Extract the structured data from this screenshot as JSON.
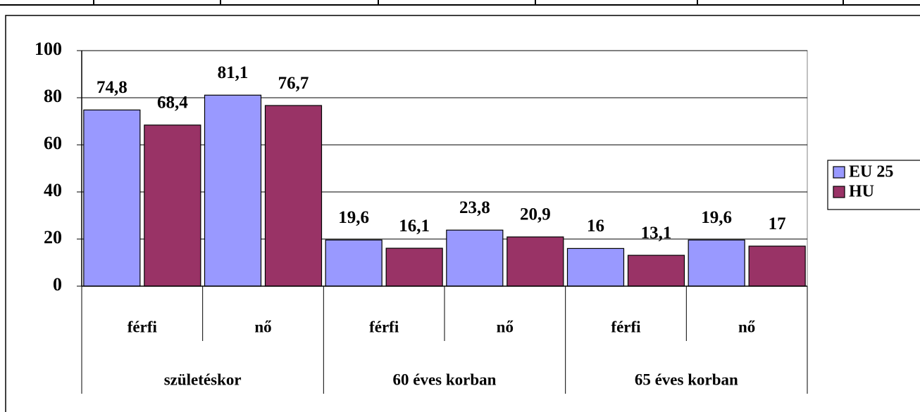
{
  "chart_data": {
    "type": "bar",
    "categories": [
      "férfi",
      "nő",
      "férfi",
      "nő",
      "férfi",
      "nő"
    ],
    "groups": [
      "születéskor",
      "60 éves korban",
      "65 éves korban"
    ],
    "series": [
      {
        "name": "EU 25",
        "color": "#9999ff",
        "values": [
          74.8,
          81.1,
          19.6,
          23.8,
          16,
          19.6
        ],
        "value_labels": [
          "74,8",
          "81,1",
          "19,6",
          "23,8",
          "16",
          "19,6"
        ]
      },
      {
        "name": "HU",
        "color": "#993366",
        "values": [
          68.4,
          76.7,
          16.1,
          20.9,
          13.1,
          17
        ],
        "value_labels": [
          "68,4",
          "76,7",
          "16,1",
          "20,9",
          "13,1",
          "17"
        ]
      }
    ],
    "ylim": [
      0,
      100
    ],
    "yticks": [
      0,
      20,
      40,
      60,
      80,
      100
    ],
    "grid": true,
    "legend": "right"
  }
}
